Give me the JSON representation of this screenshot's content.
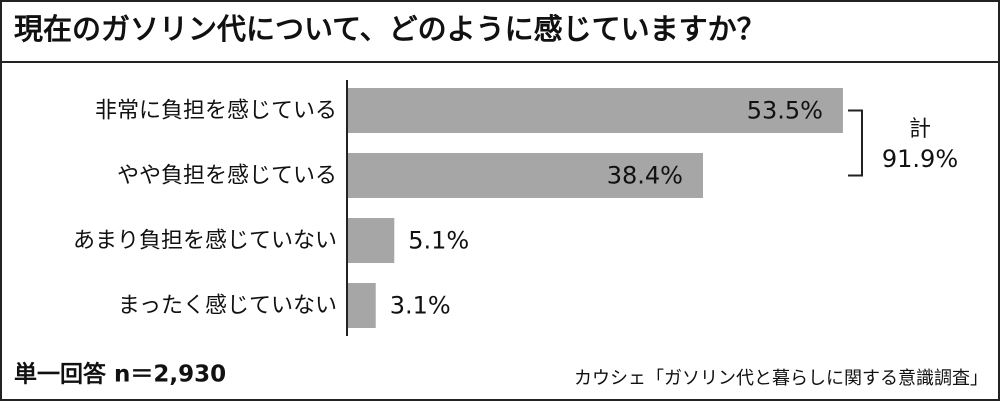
{
  "chart_data": {
    "type": "hbar",
    "title": "現在のガソリン代について、どのように感じていますか？",
    "categories": [
      "非常に負担を感じている",
      "やや負担を感じている",
      "あまり負担を感じていない",
      "まったく感じていない"
    ],
    "values": [
      53.5,
      38.4,
      5.1,
      3.1
    ],
    "value_labels": [
      "53.5%",
      "38.4%",
      "5.1%",
      "3.1%"
    ],
    "color": "#a6a6a6",
    "total": {
      "label": "計",
      "value": 91.9,
      "value_label": "91.9%"
    },
    "note": "単一回答 n＝2,930",
    "source": "カウシェ「ガソリン代と暮らしに関する意識調査」"
  }
}
